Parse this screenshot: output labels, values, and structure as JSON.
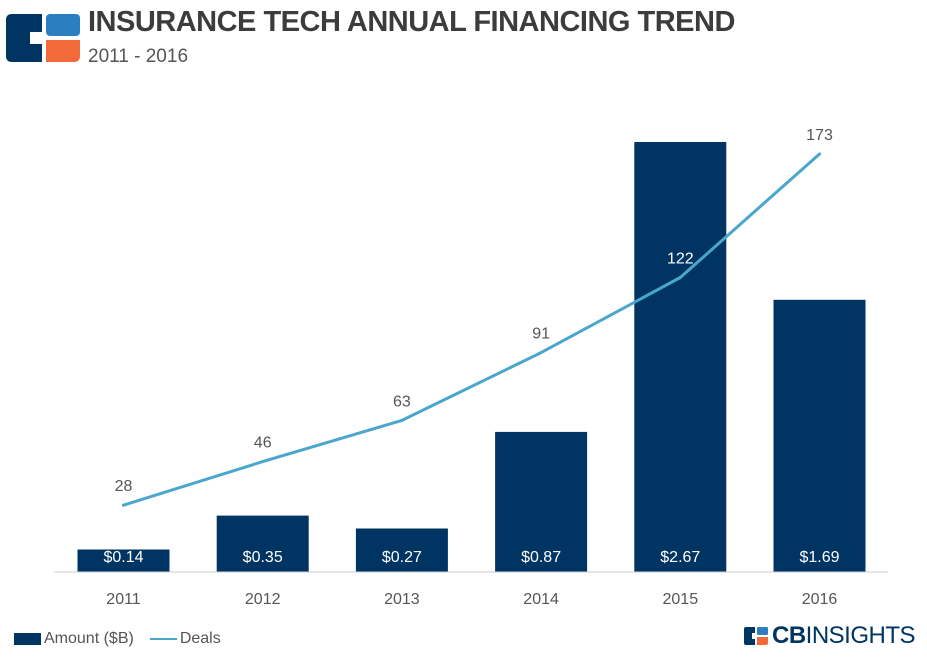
{
  "header": {
    "title": "INSURANCE TECH ANNUAL FINANCING TREND",
    "subtitle": "2011 - 2016"
  },
  "colors": {
    "bar": "#003462",
    "line": "#4aa6cc",
    "logo_orange": "#f26a3a",
    "logo_blue": "#2b7fc1",
    "axis": "#cccccc",
    "text": "#555555"
  },
  "chart_data": {
    "type": "bar+line",
    "categories": [
      "2011",
      "2012",
      "2013",
      "2014",
      "2015",
      "2016"
    ],
    "series": [
      {
        "name": "Amount ($B)",
        "kind": "bar",
        "values": [
          0.14,
          0.35,
          0.27,
          0.87,
          2.67,
          1.69
        ],
        "labels": [
          "$0.14",
          "$0.35",
          "$0.27",
          "$0.87",
          "$2.67",
          "$1.69"
        ]
      },
      {
        "name": "Deals",
        "kind": "line",
        "values": [
          28,
          46,
          63,
          91,
          122,
          173
        ],
        "labels": [
          "28",
          "46",
          "63",
          "91",
          "122",
          "173"
        ]
      }
    ],
    "bar_axis_range": [
      0,
      2.67
    ],
    "line_axis_range": [
      0,
      173
    ],
    "legend_position": "bottom-left"
  },
  "legend": {
    "bar_label": "Amount ($B)",
    "line_label": "Deals"
  },
  "brand": {
    "bold": "CB",
    "light": "INSIGHTS"
  }
}
